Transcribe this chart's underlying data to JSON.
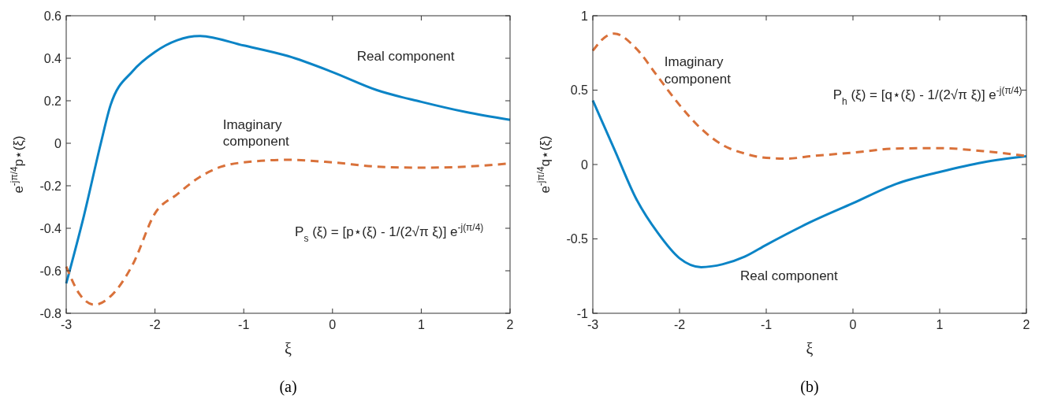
{
  "chart_data": [
    {
      "type": "line",
      "title": "(a)",
      "xlabel": "ξ",
      "ylabel": "e$^{-jπ/4}$p⋆(ξ)",
      "xlim": [
        -3,
        2
      ],
      "ylim": [
        -0.8,
        0.6
      ],
      "xticks": [
        -3,
        -2,
        -1,
        0,
        1,
        2
      ],
      "yticks": [
        -0.8,
        -0.6,
        -0.4,
        -0.2,
        0,
        0.2,
        0.4,
        0.6
      ],
      "grid": false,
      "marker": "none",
      "series": [
        {
          "color": "#0b84c6",
          "line_style": "solid",
          "x": [
            -3,
            -2.8,
            -2.61,
            -2.5,
            -2.25,
            -2,
            -1.75,
            -1.5,
            -1,
            -0.5,
            0,
            0.5,
            1,
            1.5,
            2
          ],
          "values": [
            -0.66,
            -0.34,
            0,
            0.18,
            0.34,
            0.43,
            0.485,
            0.505,
            0.46,
            0.41,
            0.335,
            0.25,
            0.195,
            0.147,
            0.11
          ]
        },
        {
          "color": "#d9713a",
          "line_style": "dashed",
          "x": [
            -3,
            -2.85,
            -2.68,
            -2.5,
            -2.25,
            -2,
            -1.75,
            -1.5,
            -1.25,
            -1,
            -0.5,
            0,
            0.5,
            1,
            1.5,
            2
          ],
          "values": [
            -0.58,
            -0.71,
            -0.76,
            -0.72,
            -0.57,
            -0.33,
            -0.24,
            -0.16,
            -0.11,
            -0.09,
            -0.078,
            -0.09,
            -0.11,
            -0.115,
            -0.11,
            -0.095
          ]
        }
      ],
      "annotations": [
        "Real component",
        "Imaginary component",
        "P$_{s}$ (ξ) = [p⋆(ξ) - 1/(2√π ξ)] e$^{-j(π/4)}$"
      ]
    },
    {
      "type": "line",
      "title": "(b)",
      "xlabel": "ξ",
      "ylabel": "e$^{-jπ/4}$q⋆(ξ)",
      "xlim": [
        -3,
        2
      ],
      "ylim": [
        -1,
        1
      ],
      "xticks": [
        -3,
        -2,
        -1,
        0,
        1,
        2
      ],
      "yticks": [
        -1,
        -0.5,
        0,
        0.5,
        1
      ],
      "grid": false,
      "marker": "none",
      "series": [
        {
          "color": "#0b84c6",
          "line_style": "solid",
          "x": [
            -3,
            -2.75,
            -2.5,
            -2.25,
            -2,
            -1.75,
            -1.5,
            -1.25,
            -1,
            -0.5,
            0,
            0.5,
            1,
            1.5,
            2
          ],
          "values": [
            0.43,
            0.1,
            -0.23,
            -0.46,
            -0.63,
            -0.69,
            -0.67,
            -0.62,
            -0.54,
            -0.39,
            -0.26,
            -0.13,
            -0.05,
            0.015,
            0.055
          ]
        },
        {
          "color": "#d9713a",
          "line_style": "dashed",
          "x": [
            -3,
            -2.85,
            -2.75,
            -2.5,
            -2.25,
            -2,
            -1.75,
            -1.5,
            -1.25,
            -1,
            -0.75,
            -0.5,
            0,
            0.5,
            1,
            1.5,
            2
          ],
          "values": [
            0.765,
            0.86,
            0.88,
            0.78,
            0.59,
            0.4,
            0.24,
            0.13,
            0.074,
            0.045,
            0.04,
            0.055,
            0.08,
            0.107,
            0.11,
            0.09,
            0.058
          ]
        }
      ],
      "annotations": [
        "Imaginary component",
        "P$_{h}$ (ξ) = [q⋆(ξ) - 1/(2√π ξ)] e$^{-j(π/4)}$",
        "Real component"
      ]
    }
  ]
}
